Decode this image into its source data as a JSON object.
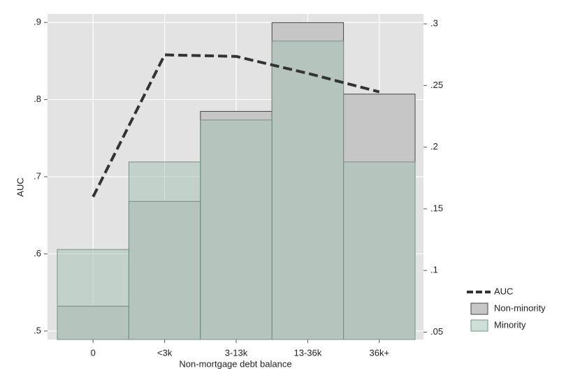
{
  "chart_data": {
    "type": "bar",
    "x_label": "Non-mortgage debt balance",
    "y_label": "AUC",
    "categories": [
      "0",
      "<3k",
      "3-13k",
      "13-36k",
      "36k+"
    ],
    "ylim": [
      0.489,
      0.911
    ],
    "yticks": [
      {
        "value": 0.5,
        "label": ".5"
      },
      {
        "value": 0.6,
        "label": ".6"
      },
      {
        "value": 0.7,
        "label": ".7"
      },
      {
        "value": 0.8,
        "label": ".8"
      },
      {
        "value": 0.9,
        "label": ".9"
      }
    ],
    "y2lim": [
      0.044,
      0.308
    ],
    "y2ticks": [
      {
        "value": 0.05,
        "label": ".05"
      },
      {
        "value": 0.1,
        "label": ".1"
      },
      {
        "value": 0.15,
        "label": ".15"
      },
      {
        "value": 0.2,
        "label": ".2"
      },
      {
        "value": 0.25,
        "label": ".25"
      },
      {
        "value": 0.3,
        "label": ".3"
      }
    ],
    "grid": true,
    "legend": "right",
    "series": [
      {
        "name": "AUC",
        "type": "line",
        "color": "#333333",
        "values": [
          0.674,
          0.858,
          0.856,
          0.834,
          0.81
        ]
      },
      {
        "name": "Non-minority",
        "type": "bar",
        "axis": "y2",
        "color": "#c6c6c6",
        "values": [
          0.071,
          0.156,
          0.229,
          0.301,
          0.243
        ]
      },
      {
        "name": "Minority",
        "type": "bar",
        "axis": "y2",
        "color": "#a8c2b6",
        "values": [
          0.117,
          0.188,
          0.222,
          0.286,
          0.188
        ]
      }
    ]
  }
}
